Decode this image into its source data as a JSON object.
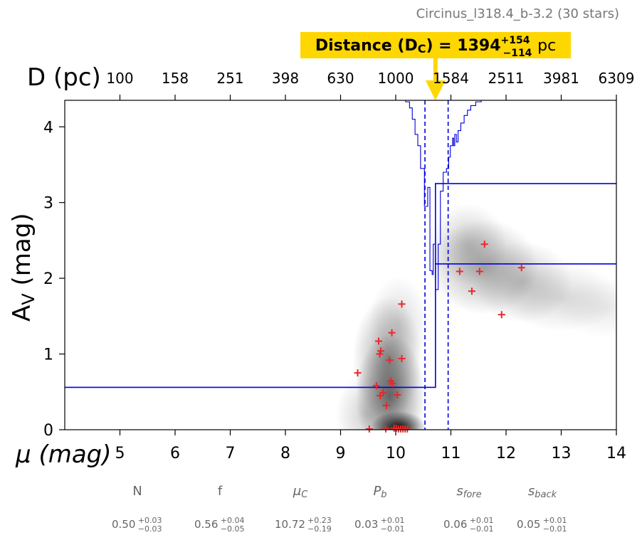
{
  "chart_data": {
    "type": "scatter",
    "title": "Circinus_l318.4_b-3.2 (30 stars)",
    "xlabel": "μ (mag)",
    "ylabel": "A_V (mag)",
    "top_axis_label": "D (pc)",
    "xlim": [
      4,
      14
    ],
    "ylim": [
      0,
      4.35
    ],
    "x_ticks": [
      5,
      6,
      7,
      8,
      9,
      10,
      11,
      12,
      13,
      14
    ],
    "x_tick_labels": [
      "5",
      "6",
      "7",
      "8",
      "9",
      "10",
      "11",
      "12",
      "13",
      "14"
    ],
    "top_ticks_mu": [
      5,
      6,
      7,
      8,
      9,
      10,
      11,
      12,
      13,
      14
    ],
    "top_tick_labels": [
      "100",
      "158",
      "251",
      "398",
      "630",
      "1000",
      "1584",
      "2511",
      "3981",
      "6309"
    ],
    "y_ticks": [
      0,
      1,
      2,
      3,
      4
    ],
    "y_tick_labels": [
      "0",
      "1",
      "2",
      "3",
      "4"
    ],
    "distance_annotation": {
      "prefix": "Distance",
      "symbol": "D",
      "subscript": "C",
      "value": "1394",
      "plus": "+154",
      "minus": "−114",
      "unit": "pc",
      "marker_mu": 10.72,
      "box_color": "#FFD700"
    },
    "stars": [
      {
        "x": 9.31,
        "y": 0.75
      },
      {
        "x": 9.65,
        "y": 0.58
      },
      {
        "x": 9.69,
        "y": 1.17
      },
      {
        "x": 9.71,
        "y": 1.0
      },
      {
        "x": 9.73,
        "y": 1.04
      },
      {
        "x": 9.72,
        "y": 0.45
      },
      {
        "x": 9.77,
        "y": 0.49
      },
      {
        "x": 9.83,
        "y": 0.32
      },
      {
        "x": 9.89,
        "y": 0.92
      },
      {
        "x": 9.91,
        "y": 0.64
      },
      {
        "x": 9.94,
        "y": 0.61
      },
      {
        "x": 9.93,
        "y": 1.28
      },
      {
        "x": 10.03,
        "y": 0.46
      },
      {
        "x": 10.11,
        "y": 1.66
      },
      {
        "x": 10.11,
        "y": 0.94
      },
      {
        "x": 9.52,
        "y": 0.01
      },
      {
        "x": 9.82,
        "y": 0.01
      },
      {
        "x": 9.97,
        "y": 0.02
      },
      {
        "x": 10.01,
        "y": 0.02
      },
      {
        "x": 10.05,
        "y": 0.01
      },
      {
        "x": 10.09,
        "y": 0.01
      },
      {
        "x": 10.13,
        "y": 0.01
      },
      {
        "x": 10.17,
        "y": 0.01
      },
      {
        "x": 10.21,
        "y": 0.01
      },
      {
        "x": 11.16,
        "y": 2.09
      },
      {
        "x": 11.38,
        "y": 1.83
      },
      {
        "x": 11.52,
        "y": 2.09
      },
      {
        "x": 11.61,
        "y": 2.45
      },
      {
        "x": 11.92,
        "y": 1.52
      },
      {
        "x": 12.28,
        "y": 2.14
      }
    ],
    "star_color": "#e8282a",
    "density_blobs": [
      {
        "x": 10.05,
        "y": 0.03,
        "sx": 0.28,
        "sy": 0.12,
        "a": 0.95
      },
      {
        "x": 9.9,
        "y": 0.45,
        "sx": 0.35,
        "sy": 0.45,
        "a": 0.55
      },
      {
        "x": 9.85,
        "y": 0.95,
        "sx": 0.35,
        "sy": 0.45,
        "a": 0.35
      },
      {
        "x": 10.05,
        "y": 1.4,
        "sx": 0.3,
        "sy": 0.35,
        "a": 0.15
      },
      {
        "x": 9.45,
        "y": 0.2,
        "sx": 0.3,
        "sy": 0.3,
        "a": 0.18
      },
      {
        "x": 11.6,
        "y": 2.15,
        "sx": 0.55,
        "sy": 0.35,
        "a": 0.32
      },
      {
        "x": 11.3,
        "y": 2.45,
        "sx": 0.4,
        "sy": 0.3,
        "a": 0.2
      },
      {
        "x": 12.3,
        "y": 1.95,
        "sx": 0.5,
        "sy": 0.3,
        "a": 0.22
      },
      {
        "x": 13.0,
        "y": 1.75,
        "sx": 0.6,
        "sy": 0.25,
        "a": 0.15
      },
      {
        "x": 13.8,
        "y": 1.6,
        "sx": 0.5,
        "sy": 0.22,
        "a": 0.08
      }
    ],
    "extinction_profile": {
      "color": "#0000dd",
      "front_level": 0.56,
      "back_level_low": 2.19,
      "back_level_high": 3.25,
      "jump_mu": 10.72,
      "ci_low_mu": 10.53,
      "ci_high_mu": 10.95
    },
    "posterior_curve": [
      [
        4.0,
        4.35
      ],
      [
        10.1,
        4.35
      ],
      [
        10.18,
        4.33
      ],
      [
        10.25,
        4.25
      ],
      [
        10.3,
        4.1
      ],
      [
        10.35,
        3.9
      ],
      [
        10.4,
        3.75
      ],
      [
        10.45,
        3.45
      ],
      [
        10.5,
        3.45
      ],
      [
        10.52,
        2.95
      ],
      [
        10.56,
        2.95
      ],
      [
        10.58,
        3.2
      ],
      [
        10.6,
        3.2
      ],
      [
        10.62,
        2.1
      ],
      [
        10.66,
        2.05
      ],
      [
        10.68,
        2.45
      ],
      [
        10.7,
        2.45
      ],
      [
        10.72,
        1.85
      ],
      [
        10.75,
        1.85
      ],
      [
        10.77,
        2.45
      ],
      [
        10.79,
        2.45
      ],
      [
        10.81,
        3.15
      ],
      [
        10.84,
        3.15
      ],
      [
        10.86,
        3.4
      ],
      [
        10.9,
        3.4
      ],
      [
        10.92,
        3.45
      ],
      [
        10.96,
        3.6
      ],
      [
        10.99,
        3.75
      ],
      [
        11.03,
        3.85
      ],
      [
        11.05,
        3.75
      ],
      [
        11.07,
        3.9
      ],
      [
        11.1,
        3.8
      ],
      [
        11.13,
        3.95
      ],
      [
        11.18,
        4.05
      ],
      [
        11.24,
        4.15
      ],
      [
        11.3,
        4.22
      ],
      [
        11.36,
        4.28
      ],
      [
        11.45,
        4.33
      ],
      [
        11.55,
        4.35
      ],
      [
        14.0,
        4.35
      ]
    ],
    "parameters": [
      {
        "name": "N",
        "sub": "",
        "italic": false,
        "value": "0.50",
        "plus": "+0.03",
        "minus": "−0.03"
      },
      {
        "name": "f",
        "sub": "",
        "italic": false,
        "value": "0.56",
        "plus": "+0.04",
        "minus": "−0.05"
      },
      {
        "name": "μ",
        "sub": "C",
        "italic": true,
        "value": "10.72",
        "plus": "+0.23",
        "minus": "−0.19"
      },
      {
        "name": "P",
        "sub": "b",
        "italic": true,
        "value": "0.03",
        "plus": "+0.01",
        "minus": "−0.01"
      },
      {
        "name": "s",
        "sub": "fore",
        "italic": true,
        "value": "0.06",
        "plus": "+0.01",
        "minus": "−0.01"
      },
      {
        "name": "s",
        "sub": "back",
        "italic": true,
        "value": "0.05",
        "plus": "+0.01",
        "minus": "−0.01"
      }
    ]
  }
}
